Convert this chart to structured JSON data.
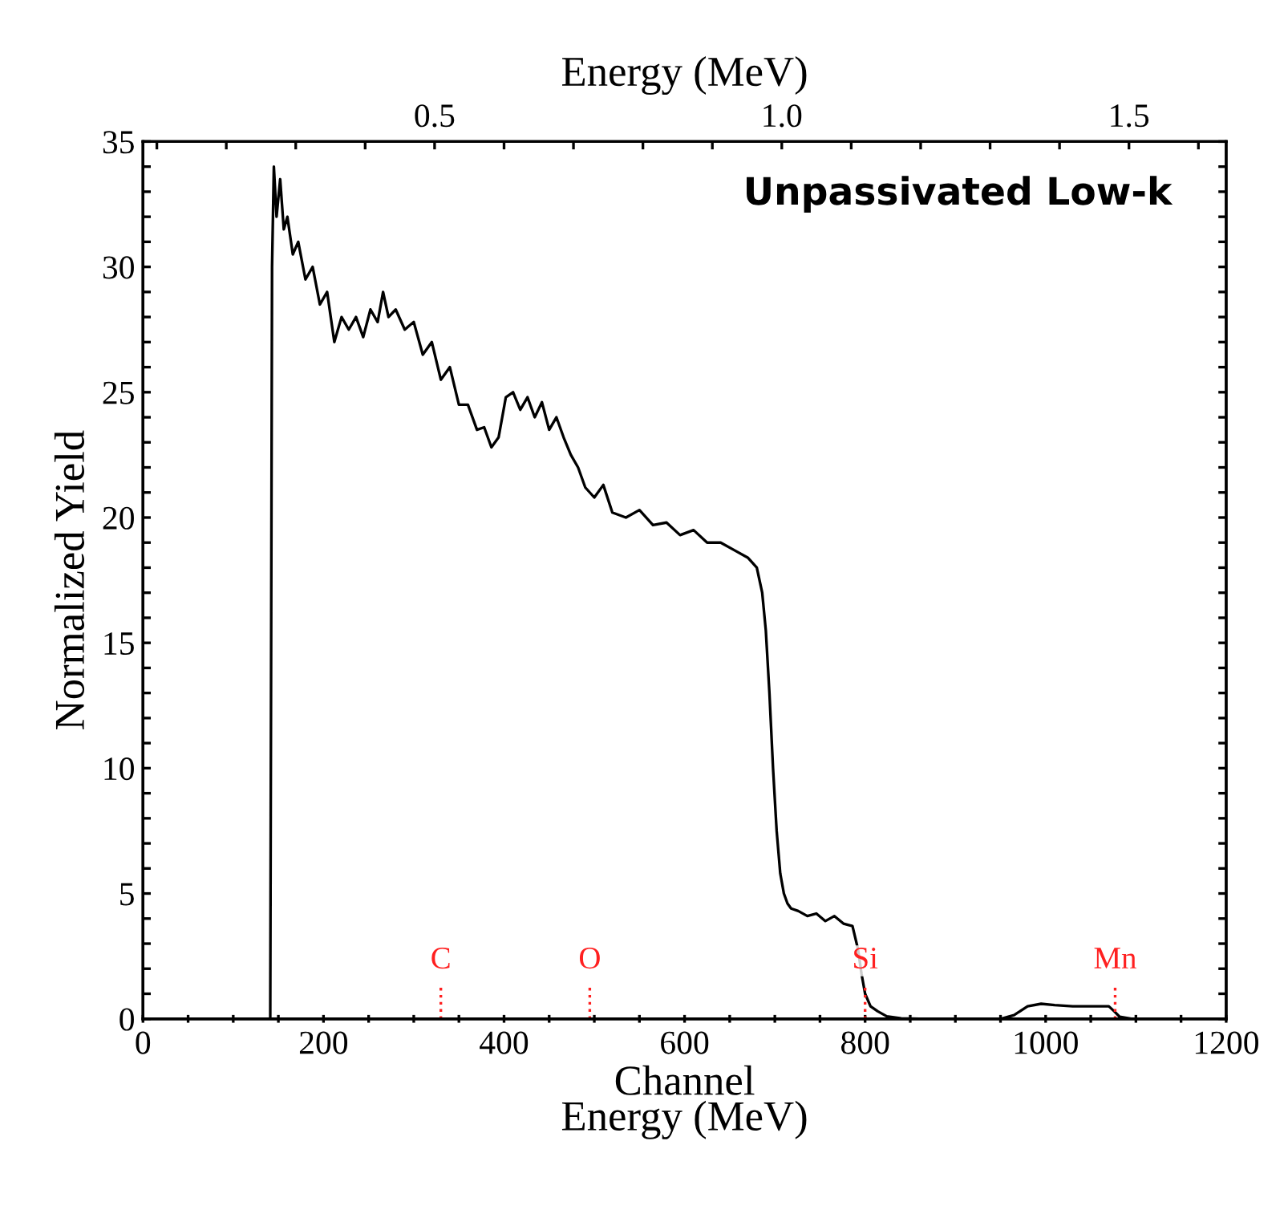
{
  "chart_data": {
    "type": "line",
    "title": "Unpassivated Low-k",
    "xlabel": "Channel\nEnergy (MeV)",
    "ylabel": "Normalized Yield",
    "x2label": "Energy (MeV)",
    "x": [
      0,
      141,
      143,
      145,
      148,
      152,
      156,
      160,
      166,
      172,
      180,
      188,
      196,
      204,
      212,
      220,
      228,
      236,
      244,
      252,
      260,
      266,
      272,
      280,
      290,
      300,
      310,
      320,
      330,
      340,
      350,
      360,
      370,
      378,
      386,
      394,
      402,
      410,
      418,
      426,
      434,
      442,
      450,
      458,
      466,
      474,
      482,
      490,
      500,
      510,
      520,
      535,
      550,
      565,
      580,
      595,
      610,
      625,
      640,
      655,
      670,
      680,
      686,
      690,
      694,
      698,
      702,
      706,
      710,
      714,
      718,
      726,
      736,
      746,
      756,
      766,
      776,
      786,
      792,
      796,
      800,
      806,
      814,
      824,
      840,
      860,
      900,
      950,
      965,
      980,
      995,
      1010,
      1030,
      1050,
      1070,
      1076,
      1082,
      1095,
      1200
    ],
    "series": [
      {
        "color": "#000000",
        "values": [
          0,
          0,
          30,
          34,
          32,
          33.5,
          31.5,
          32,
          30.5,
          31,
          29.5,
          30,
          28.5,
          29,
          27,
          28,
          27.5,
          28,
          27.2,
          28.3,
          27.8,
          29,
          28,
          28.3,
          27.5,
          27.8,
          26.5,
          27,
          25.5,
          26,
          24.5,
          24.5,
          23.5,
          23.6,
          22.8,
          23.2,
          24.8,
          25,
          24.3,
          24.8,
          24,
          24.6,
          23.5,
          24,
          23.2,
          22.5,
          22,
          21.2,
          20.8,
          21.3,
          20.2,
          20,
          20.3,
          19.7,
          19.8,
          19.3,
          19.5,
          19,
          19,
          18.7,
          18.4,
          18,
          17,
          15.5,
          13,
          10,
          7.5,
          5.8,
          5,
          4.6,
          4.4,
          4.3,
          4.1,
          4.2,
          3.9,
          4.1,
          3.8,
          3.7,
          2.8,
          1.8,
          1.0,
          0.5,
          0.3,
          0.1,
          0.02,
          0,
          0,
          0,
          0.15,
          0.5,
          0.6,
          0.55,
          0.5,
          0.5,
          0.5,
          0.3,
          0.08,
          0,
          0
        ]
      }
    ],
    "ref_lines": [
      {
        "axis": "x",
        "value": 330,
        "label": "C",
        "color": "#ff2020",
        "line_style": "dotted"
      },
      {
        "axis": "x",
        "value": 495,
        "label": "O",
        "color": "#ff2020",
        "line_style": "dotted"
      },
      {
        "axis": "x",
        "value": 800,
        "label": "Si",
        "color": "#ff2020",
        "line_style": "dotted"
      },
      {
        "axis": "x",
        "value": 1077,
        "label": "Mn",
        "color": "#ff2020",
        "line_style": "dotted"
      }
    ],
    "xlim": [
      0,
      1200
    ],
    "ylim": [
      0,
      35
    ],
    "xticks": [
      0,
      {
        "value": 50,
        "label": null
      },
      {
        "value": 100,
        "label": null
      },
      {
        "value": 150,
        "label": null
      },
      200,
      {
        "value": 250,
        "label": null
      },
      {
        "value": 300,
        "label": null
      },
      {
        "value": 350,
        "label": null
      },
      400,
      {
        "value": 450,
        "label": null
      },
      {
        "value": 500,
        "label": null
      },
      {
        "value": 550,
        "label": null
      },
      600,
      {
        "value": 650,
        "label": null
      },
      {
        "value": 700,
        "label": null
      },
      {
        "value": 750,
        "label": null
      },
      800,
      {
        "value": 850,
        "label": null
      },
      {
        "value": 900,
        "label": null
      },
      {
        "value": 950,
        "label": null
      },
      1000,
      {
        "value": 1050,
        "label": null
      },
      {
        "value": 1100,
        "label": null
      },
      {
        "value": 1150,
        "label": null
      },
      1200
    ],
    "yticks": [
      0,
      {
        "value": 1,
        "label": null
      },
      {
        "value": 2,
        "label": null
      },
      {
        "value": 3,
        "label": null
      },
      {
        "value": 4,
        "label": null
      },
      5,
      {
        "value": 6,
        "label": null
      },
      {
        "value": 7,
        "label": null
      },
      {
        "value": 8,
        "label": null
      },
      {
        "value": 9,
        "label": null
      },
      10,
      {
        "value": 11,
        "label": null
      },
      {
        "value": 12,
        "label": null
      },
      {
        "value": 13,
        "label": null
      },
      {
        "value": 14,
        "label": null
      },
      15,
      {
        "value": 16,
        "label": null
      },
      {
        "value": 17,
        "label": null
      },
      {
        "value": 18,
        "label": null
      },
      {
        "value": 19,
        "label": null
      },
      20,
      {
        "value": 21,
        "label": null
      },
      {
        "value": 22,
        "label": null
      },
      {
        "value": 23,
        "label": null
      },
      {
        "value": 24,
        "label": null
      },
      25,
      {
        "value": 26,
        "label": null
      },
      {
        "value": 27,
        "label": null
      },
      {
        "value": 28,
        "label": null
      },
      {
        "value": 29,
        "label": null
      },
      30,
      {
        "value": 31,
        "label": null
      },
      {
        "value": 32,
        "label": null
      },
      {
        "value": 33,
        "label": null
      },
      {
        "value": 34,
        "label": null
      },
      35
    ],
    "x2lim": [
      0.08,
      1.64
    ],
    "x2ticks": [
      {
        "value": 0.1,
        "label": null
      },
      {
        "value": 0.2,
        "label": null
      },
      {
        "value": 0.3,
        "label": null
      },
      {
        "value": 0.4,
        "label": null
      },
      {
        "value": 0.5,
        "label": "0.5"
      },
      {
        "value": 0.6,
        "label": null
      },
      {
        "value": 0.7,
        "label": null
      },
      {
        "value": 0.8,
        "label": null
      },
      {
        "value": 0.9,
        "label": null
      },
      {
        "value": 1.0,
        "label": "1.0"
      },
      {
        "value": 1.1,
        "label": null
      },
      {
        "value": 1.2,
        "label": null
      },
      {
        "value": 1.3,
        "label": null
      },
      {
        "value": 1.4,
        "label": null
      },
      {
        "value": 1.5,
        "label": "1.5"
      },
      {
        "value": 1.6,
        "label": null
      }
    ],
    "grid": false,
    "legend": false,
    "marker": "none",
    "line_style": "solid"
  }
}
